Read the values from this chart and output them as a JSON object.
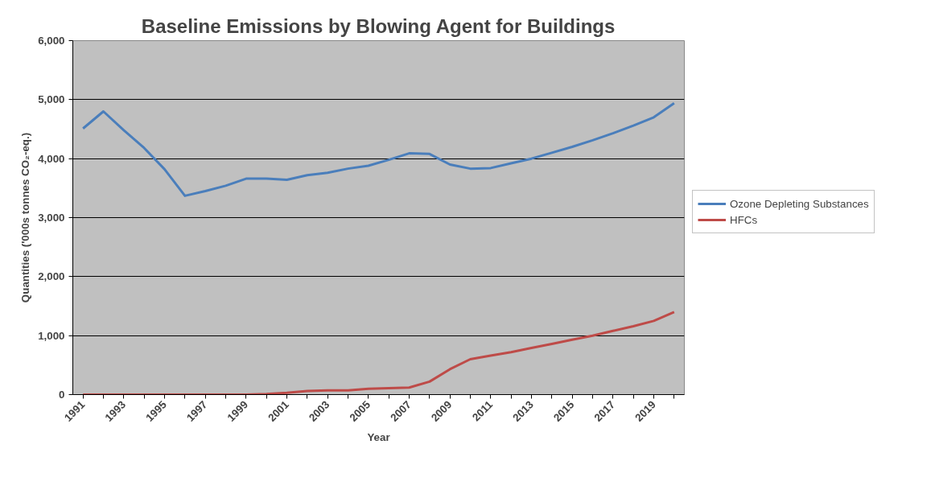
{
  "chart_data": {
    "type": "line",
    "title": "Baseline Emissions by Blowing Agent for Buildings",
    "xlabel": "Year",
    "ylabel": "Quantities ('000s tonnes CO₂-eq.)",
    "categories": [
      "1991",
      null,
      "1993",
      null,
      "1995",
      null,
      "1997",
      null,
      "1999",
      null,
      "2001",
      null,
      "2003",
      null,
      "2005",
      null,
      "2007",
      null,
      "2009",
      null,
      "2011",
      null,
      "2013",
      null,
      "2015",
      null,
      "2017",
      null,
      "2019",
      null
    ],
    "series": [
      {
        "name": "Ozone Depleting Substances",
        "color": "#4a7ebb",
        "values": [
          4510,
          4800,
          4480,
          4180,
          3820,
          3370,
          3450,
          3540,
          3660,
          3660,
          3640,
          3720,
          3760,
          3830,
          3880,
          3980,
          4090,
          4080,
          3900,
          3830,
          3840,
          3920,
          4000,
          4100,
          4200,
          4310,
          4430,
          4560,
          4700,
          4940
        ]
      },
      {
        "name": "HFCs",
        "color": "#be4b48",
        "values": [
          0,
          0,
          0,
          0,
          0,
          0,
          0,
          0,
          0,
          10,
          30,
          60,
          70,
          70,
          100,
          110,
          120,
          220,
          430,
          600,
          660,
          720,
          790,
          860,
          930,
          1000,
          1080,
          1160,
          1250,
          1400
        ]
      }
    ],
    "ylim": [
      0,
      6000
    ],
    "yticks": [
      0,
      {
        "value": 1000,
        "label": "1,000"
      },
      {
        "value": 2000,
        "label": "2,000"
      },
      {
        "value": 3000,
        "label": "3,000"
      },
      {
        "value": 4000,
        "label": "4,000"
      },
      {
        "value": 5000,
        "label": "5,000"
      },
      {
        "value": 6000,
        "label": "6,000"
      }
    ],
    "grid": "y",
    "legend": "right",
    "marker": "none",
    "line_style": "solid"
  }
}
